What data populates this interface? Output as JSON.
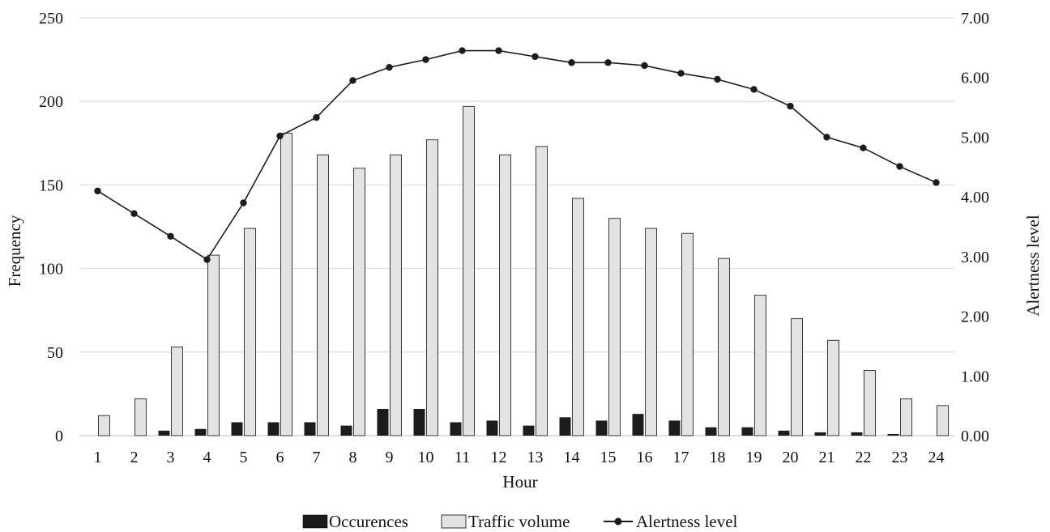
{
  "chart_data": {
    "type": "bar",
    "xlabel": "Hour",
    "ylabel": "Frequency",
    "y2label": "Alertness level",
    "categories": [
      "1",
      "2",
      "3",
      "4",
      "5",
      "6",
      "7",
      "8",
      "9",
      "10",
      "11",
      "12",
      "13",
      "14",
      "15",
      "16",
      "17",
      "18",
      "19",
      "20",
      "21",
      "22",
      "23",
      "24"
    ],
    "ylim": [
      0,
      250
    ],
    "y_ticks": [
      "0",
      "50",
      "100",
      "150",
      "200",
      "250"
    ],
    "y2lim": [
      0,
      7
    ],
    "y2_ticks": [
      "0.00",
      "1.00",
      "2.00",
      "3.00",
      "4.00",
      "5.00",
      "6.00",
      "7.00"
    ],
    "grid": true,
    "legend_position": "bottom",
    "series": [
      {
        "name": "Occurences",
        "type": "bar",
        "axis": "left",
        "color": "#1c1c1c",
        "values": [
          0,
          0,
          3,
          4,
          8,
          8,
          8,
          6,
          16,
          16,
          8,
          9,
          6,
          11,
          9,
          13,
          9,
          5,
          5,
          3,
          2,
          2,
          1,
          0
        ]
      },
      {
        "name": "Traffic volume",
        "type": "bar",
        "axis": "left",
        "color": "#e3e3e3",
        "values": [
          12,
          22,
          53,
          108,
          124,
          181,
          168,
          160,
          168,
          177,
          197,
          168,
          173,
          142,
          130,
          124,
          121,
          106,
          84,
          70,
          57,
          39,
          22,
          18
        ]
      },
      {
        "name": "Alertness level",
        "type": "line",
        "axis": "right",
        "color": "#1c1c1c",
        "values": [
          4.1,
          3.72,
          3.34,
          2.95,
          3.9,
          5.02,
          5.33,
          5.95,
          6.17,
          6.3,
          6.45,
          6.45,
          6.35,
          6.25,
          6.25,
          6.2,
          6.07,
          5.97,
          5.8,
          5.52,
          5.0,
          4.82,
          4.51,
          4.24
        ]
      }
    ]
  }
}
